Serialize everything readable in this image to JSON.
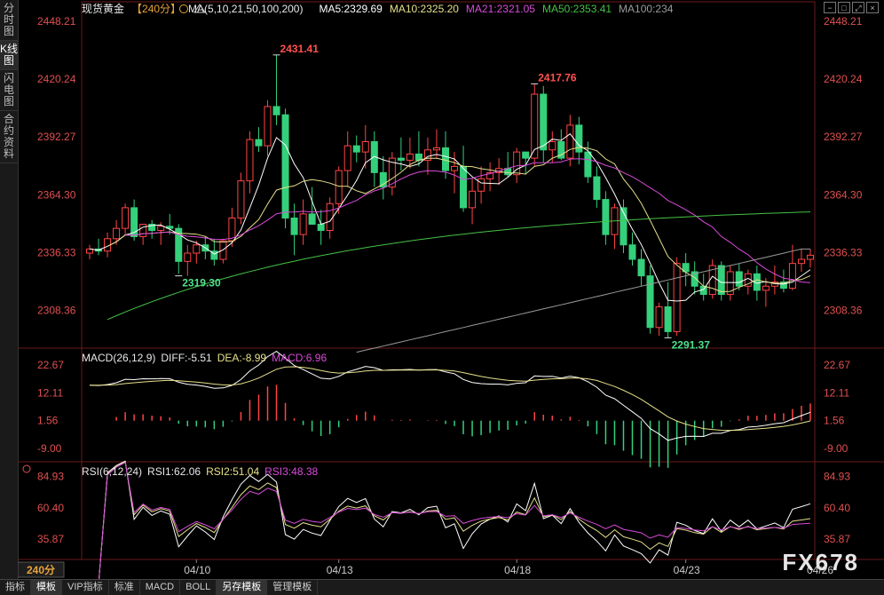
{
  "sidebar": {
    "tabs": [
      {
        "label": "分时图",
        "active": false
      },
      {
        "label": "K线图",
        "active": true
      },
      {
        "label": "闪电图",
        "active": false
      },
      {
        "label": "合约资料",
        "active": false
      }
    ]
  },
  "header": {
    "symbol": "现货黄金",
    "period_tag": "【240分】",
    "ma_label": "MA(5,10,21,50,100,200)",
    "ma5": "MA5:2329.69",
    "ma10": "MA10:2325.20",
    "ma21": "MA21:2321.05",
    "ma50": "MA50:2353.41",
    "ma100": "MA100:234"
  },
  "window_controls": [
    "−",
    "□",
    "⤢",
    "×"
  ],
  "price_axis": [
    "2448.21",
    "2420.24",
    "2392.27",
    "2364.30",
    "2336.33",
    "2308.36"
  ],
  "annotations": {
    "high1": "2431.41",
    "low1": "2319.30",
    "high2": "2417.76",
    "low2": "2291.37"
  },
  "macd_panel": {
    "label": "MACD(26,12,9)",
    "diff": "DIFF:-5.51",
    "dea": "DEA:-8.99",
    "macd": "MACD:6.96",
    "axis": [
      "22.67",
      "12.11",
      "1.56",
      "-9.00"
    ]
  },
  "rsi_panel": {
    "label": "RSI(6,12,24)",
    "rsi1": "RSI1:62.06",
    "rsi2": "RSI2:51.04",
    "rsi3": "RSI3:48.38",
    "axis": [
      "84.93",
      "60.40",
      "35.87"
    ]
  },
  "period_button": "240分",
  "date_axis": [
    "04/10",
    "04/13",
    "04/18",
    "04/23",
    "04/26"
  ],
  "bottom_tabs": [
    {
      "label": "指标",
      "active": false
    },
    {
      "label": "模板",
      "active": true
    },
    {
      "label": "VIP指标",
      "active": false
    },
    {
      "label": "标准",
      "active": false
    },
    {
      "label": "MACD",
      "active": false
    },
    {
      "label": "BOLL",
      "active": false
    },
    {
      "label": "另存模板",
      "active": true
    },
    {
      "label": "管理模板",
      "active": false
    }
  ],
  "watermark": "FX678",
  "colors": {
    "up": "#ff4444",
    "down": "#34d07b",
    "ma5": "#ffffff",
    "ma10": "#e6e08a",
    "ma21": "#d94bd9",
    "ma50": "#45c245",
    "ma100": "#9a9a9a",
    "rsi1": "#ffffff",
    "rsi2": "#e6e08a",
    "rsi3": "#d94bd9",
    "axis_text": "#e05050"
  },
  "chart_data": {
    "type": "candlestick",
    "timeframe": "240分",
    "ylim": [
      2290,
      2450
    ],
    "candles": [
      [
        2336,
        2340,
        2333,
        2338
      ],
      [
        2338,
        2343,
        2335,
        2337
      ],
      [
        2337,
        2346,
        2334,
        2343
      ],
      [
        2343,
        2352,
        2340,
        2348
      ],
      [
        2348,
        2360,
        2345,
        2358
      ],
      [
        2358,
        2362,
        2342,
        2344
      ],
      [
        2344,
        2350,
        2340,
        2350
      ],
      [
        2350,
        2352,
        2343,
        2347
      ],
      [
        2347,
        2351,
        2340,
        2349
      ],
      [
        2349,
        2355,
        2345,
        2348
      ],
      [
        2348,
        2350,
        2326,
        2332
      ],
      [
        2332,
        2340,
        2325,
        2336
      ],
      [
        2336,
        2342,
        2331,
        2340
      ],
      [
        2340,
        2344,
        2333,
        2337
      ],
      [
        2337,
        2343,
        2330,
        2333
      ],
      [
        2333,
        2343,
        2331,
        2342
      ],
      [
        2342,
        2358,
        2339,
        2353
      ],
      [
        2353,
        2375,
        2350,
        2371
      ],
      [
        2371,
        2395,
        2365,
        2391
      ],
      [
        2391,
        2397,
        2385,
        2388
      ],
      [
        2388,
        2410,
        2383,
        2407
      ],
      [
        2407,
        2432,
        2398,
        2403
      ],
      [
        2403,
        2406,
        2348,
        2353
      ],
      [
        2353,
        2360,
        2335,
        2345
      ],
      [
        2345,
        2362,
        2340,
        2355
      ],
      [
        2355,
        2368,
        2350,
        2350
      ],
      [
        2350,
        2357,
        2340,
        2347
      ],
      [
        2347,
        2363,
        2343,
        2360
      ],
      [
        2360,
        2378,
        2355,
        2376
      ],
      [
        2376,
        2395,
        2368,
        2388
      ],
      [
        2388,
        2393,
        2380,
        2385
      ],
      [
        2385,
        2398,
        2377,
        2390
      ],
      [
        2390,
        2395,
        2368,
        2375
      ],
      [
        2375,
        2383,
        2362,
        2368
      ],
      [
        2368,
        2385,
        2364,
        2382
      ],
      [
        2382,
        2392,
        2376,
        2381
      ],
      [
        2381,
        2392,
        2377,
        2384
      ],
      [
        2384,
        2395,
        2378,
        2381
      ],
      [
        2381,
        2392,
        2374,
        2386
      ],
      [
        2386,
        2396,
        2382,
        2387
      ],
      [
        2387,
        2395,
        2372,
        2376
      ],
      [
        2376,
        2385,
        2365,
        2378
      ],
      [
        2378,
        2388,
        2356,
        2358
      ],
      [
        2358,
        2372,
        2350,
        2366
      ],
      [
        2366,
        2378,
        2360,
        2372
      ],
      [
        2372,
        2380,
        2366,
        2375
      ],
      [
        2375,
        2382,
        2369,
        2377
      ],
      [
        2377,
        2385,
        2373,
        2374
      ],
      [
        2374,
        2387,
        2370,
        2385
      ],
      [
        2385,
        2384,
        2374,
        2382
      ],
      [
        2382,
        2418,
        2378,
        2413
      ],
      [
        2413,
        2417,
        2380,
        2386
      ],
      [
        2386,
        2395,
        2380,
        2390
      ],
      [
        2390,
        2396,
        2381,
        2382
      ],
      [
        2382,
        2403,
        2378,
        2398
      ],
      [
        2398,
        2402,
        2379,
        2385
      ],
      [
        2385,
        2390,
        2370,
        2373
      ],
      [
        2373,
        2378,
        2358,
        2362
      ],
      [
        2362,
        2366,
        2340,
        2345
      ],
      [
        2345,
        2360,
        2338,
        2358
      ],
      [
        2358,
        2362,
        2336,
        2340
      ],
      [
        2340,
        2346,
        2330,
        2333
      ],
      [
        2333,
        2338,
        2320,
        2325
      ],
      [
        2325,
        2330,
        2297,
        2300
      ],
      [
        2300,
        2312,
        2296,
        2310
      ],
      [
        2310,
        2322,
        2295,
        2298
      ],
      [
        2298,
        2334,
        2296,
        2331
      ],
      [
        2331,
        2336,
        2320,
        2327
      ],
      [
        2327,
        2332,
        2316,
        2320
      ],
      [
        2320,
        2326,
        2313,
        2316
      ],
      [
        2316,
        2333,
        2314,
        2330
      ],
      [
        2330,
        2332,
        2313,
        2316
      ],
      [
        2316,
        2330,
        2313,
        2327
      ],
      [
        2327,
        2331,
        2318,
        2320
      ],
      [
        2320,
        2328,
        2316,
        2326
      ],
      [
        2326,
        2330,
        2313,
        2318
      ],
      [
        2318,
        2324,
        2310,
        2320
      ],
      [
        2320,
        2330,
        2316,
        2322
      ],
      [
        2322,
        2328,
        2317,
        2319
      ],
      [
        2319,
        2340,
        2318,
        2331
      ],
      [
        2331,
        2338,
        2327,
        2333
      ],
      [
        2333,
        2338,
        2329,
        2335
      ]
    ],
    "ma_levels_last": {
      "MA5": 2329.69,
      "MA10": 2325.2,
      "MA21": 2321.05,
      "MA50": 2353.41
    },
    "macd_last": {
      "DIFF": -5.51,
      "DEA": -8.99,
      "MACD": 6.96
    },
    "macd_ylim": [
      -14,
      28
    ],
    "rsi_last": {
      "RSI1": 62.06,
      "RSI2": 51.04,
      "RSI3": 48.38
    },
    "rsi_ylim": [
      20,
      95
    ]
  }
}
